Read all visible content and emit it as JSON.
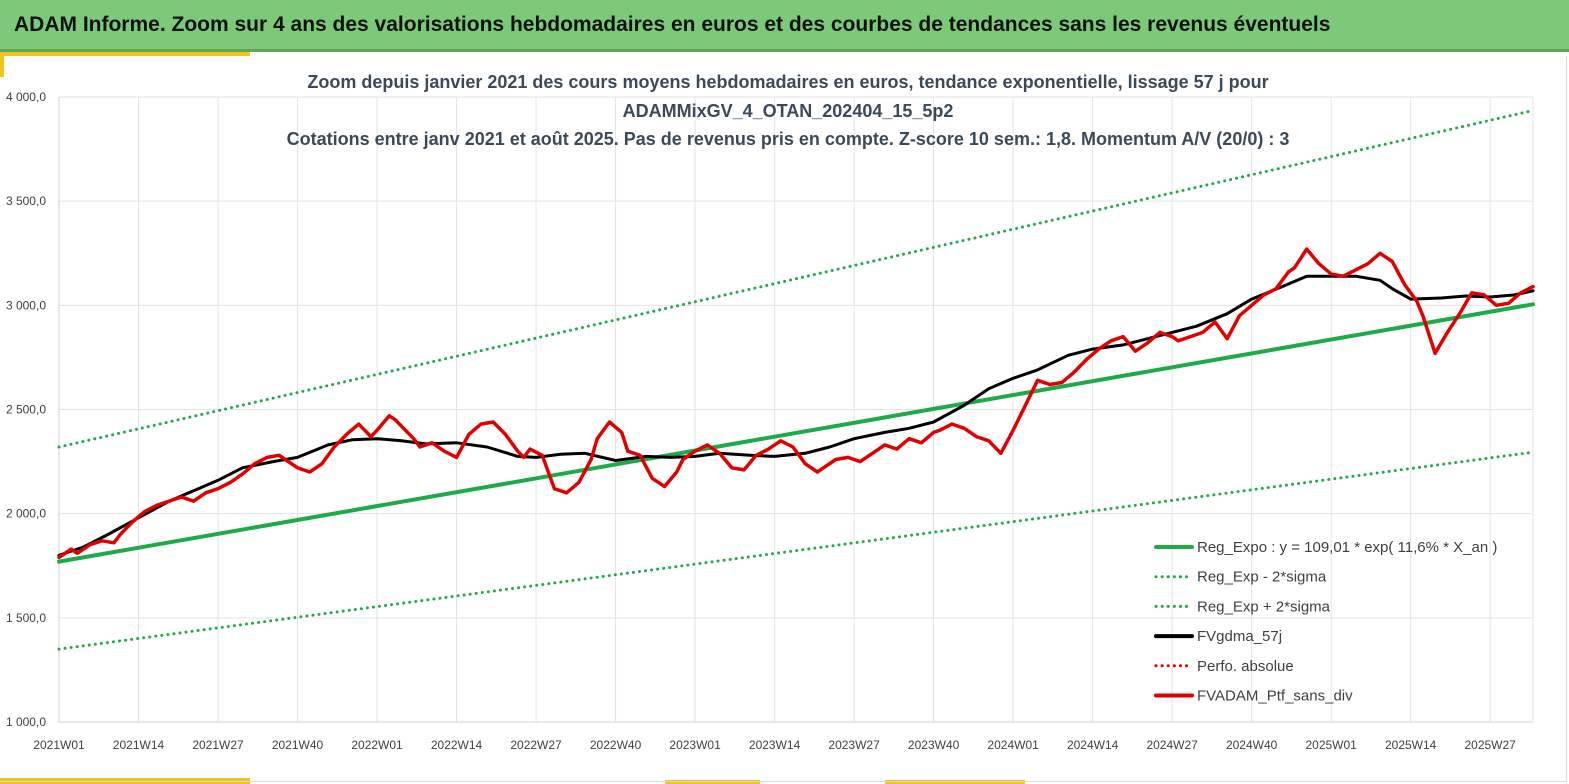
{
  "banner": {
    "title": "ADAM Informe. Zoom sur 4 ans des valorisations hebdomadaires en euros et des courbes de tendances sans les revenus éventuels"
  },
  "chart_data": {
    "type": "line",
    "title": [
      "Zoom depuis janvier 2021 des cours moyens hebdomadaires  en euros, tendance exponentielle, lissage 57 j pour",
      "ADAMMixGV_4_OTAN_202404_15_5p2",
      "Cotations  entre janv 2021 et août 2025. Pas de revenus pris en compte. Z-score 10 sem.: 1,8. Momentum A/V (20/0) : 3"
    ],
    "xlabel": "",
    "ylabel": "",
    "ylim": [
      1000,
      4000
    ],
    "xlim": [
      0,
      241
    ],
    "y_ticks": [
      1000,
      1500,
      2000,
      2500,
      3000,
      3500,
      4000
    ],
    "y_tick_labels": [
      "1 000,0",
      "1 500,0",
      "2 000,0",
      "2 500,0",
      "3 000,0",
      "3 500,0",
      "4 000,0"
    ],
    "x_ticks": [
      0,
      13,
      26,
      39,
      52,
      65,
      78,
      91,
      104,
      117,
      130,
      143,
      156,
      169,
      182,
      195,
      208,
      221,
      234
    ],
    "x_tick_labels": [
      "2021W01",
      "2021W14",
      "2021W27",
      "2021W40",
      "2022W01",
      "2022W14",
      "2022W27",
      "2022W40",
      "2023W01",
      "2023W14",
      "2023W27",
      "2023W40",
      "2024W01",
      "2024W14",
      "2024W27",
      "2024W40",
      "2025W01",
      "2025W14",
      "2025W27"
    ],
    "grid": true,
    "legend_position": "bottom-right",
    "series": [
      {
        "name": "Reg_Expo : y = 109,01 * exp( 11,6% *  X_an )",
        "color": "#1faa4a",
        "style": "solid",
        "x": [
          0,
          241
        ],
        "y": [
          1770,
          3005
        ]
      },
      {
        "name": "Reg_Exp - 2*sigma",
        "color": "#1faa4a",
        "style": "dotted",
        "x": [
          0,
          241
        ],
        "y": [
          1350,
          2295
        ]
      },
      {
        "name": "Reg_Exp + 2*sigma",
        "color": "#1faa4a",
        "style": "dotted",
        "x": [
          0,
          241
        ],
        "y": [
          2320,
          3935
        ]
      },
      {
        "name": "FVgdma_57j",
        "color": "#000000",
        "style": "solid",
        "x": [
          0,
          4,
          8,
          13,
          18,
          22,
          26,
          30,
          35,
          39,
          44,
          48,
          52,
          56,
          60,
          65,
          70,
          75,
          78,
          82,
          86,
          91,
          96,
          100,
          104,
          108,
          113,
          117,
          122,
          126,
          130,
          135,
          139,
          143,
          148,
          152,
          156,
          160,
          165,
          169,
          174,
          178,
          182,
          186,
          191,
          195,
          200,
          204,
          208,
          212,
          216,
          218,
          221,
          226,
          230,
          234,
          238,
          241
        ],
        "y": [
          1800,
          1840,
          1900,
          1980,
          2060,
          2110,
          2160,
          2220,
          2250,
          2270,
          2330,
          2355,
          2360,
          2350,
          2335,
          2340,
          2320,
          2275,
          2270,
          2285,
          2290,
          2255,
          2275,
          2270,
          2275,
          2290,
          2280,
          2275,
          2290,
          2320,
          2360,
          2390,
          2410,
          2440,
          2520,
          2600,
          2650,
          2690,
          2760,
          2790,
          2810,
          2840,
          2870,
          2900,
          2960,
          3030,
          3090,
          3140,
          3140,
          3140,
          3120,
          3080,
          3030,
          3035,
          3045,
          3040,
          3050,
          3070
        ]
      },
      {
        "name": "Perfo. absolue",
        "color": "#e00000",
        "style": "dotted",
        "x": [],
        "y": []
      },
      {
        "name": "FVADAM_Ptf_sans_div",
        "color": "#e00000",
        "style": "solid",
        "x": [
          0,
          2,
          3,
          5,
          7,
          9,
          10,
          12,
          14,
          16,
          18,
          20,
          22,
          24,
          26,
          28,
          30,
          32,
          34,
          36,
          37,
          39,
          41,
          43,
          45,
          47,
          49,
          50,
          51,
          52,
          54,
          55,
          56,
          58,
          59,
          61,
          63,
          65,
          67,
          69,
          71,
          73,
          75,
          76,
          77,
          79,
          81,
          83,
          85,
          87,
          88,
          90,
          92,
          93,
          95,
          97,
          99,
          101,
          102,
          104,
          106,
          108,
          110,
          112,
          114,
          116,
          118,
          120,
          122,
          124,
          125,
          127,
          129,
          131,
          133,
          135,
          137,
          139,
          141,
          143,
          144,
          146,
          148,
          150,
          152,
          154,
          156,
          158,
          160,
          162,
          164,
          166,
          168,
          170,
          172,
          174,
          176,
          178,
          180,
          182,
          183,
          185,
          187,
          189,
          191,
          193,
          195,
          197,
          199,
          201,
          202,
          204,
          206,
          208,
          210,
          212,
          214,
          216,
          218,
          220,
          222,
          223,
          225,
          227,
          229,
          231,
          233,
          235,
          237,
          239,
          241
        ],
        "y": [
          1790,
          1830,
          1810,
          1850,
          1870,
          1860,
          1900,
          1960,
          2010,
          2040,
          2060,
          2080,
          2060,
          2100,
          2120,
          2150,
          2190,
          2240,
          2270,
          2280,
          2260,
          2220,
          2200,
          2240,
          2320,
          2380,
          2430,
          2400,
          2370,
          2400,
          2470,
          2450,
          2420,
          2360,
          2320,
          2340,
          2300,
          2270,
          2380,
          2430,
          2440,
          2380,
          2300,
          2270,
          2310,
          2280,
          2120,
          2100,
          2150,
          2260,
          2360,
          2440,
          2390,
          2300,
          2280,
          2170,
          2130,
          2200,
          2260,
          2300,
          2330,
          2290,
          2220,
          2210,
          2280,
          2310,
          2350,
          2320,
          2240,
          2200,
          2220,
          2260,
          2270,
          2250,
          2290,
          2330,
          2310,
          2360,
          2340,
          2390,
          2400,
          2430,
          2410,
          2370,
          2350,
          2290,
          2400,
          2520,
          2640,
          2620,
          2630,
          2680,
          2740,
          2790,
          2830,
          2850,
          2780,
          2820,
          2870,
          2850,
          2830,
          2850,
          2870,
          2920,
          2840,
          2950,
          3000,
          3050,
          3080,
          3160,
          3180,
          3270,
          3200,
          3150,
          3140,
          3170,
          3200,
          3250,
          3210,
          3100,
          3020,
          2950,
          2770,
          2870,
          2960,
          3060,
          3050,
          3000,
          3010,
          3060,
          3090
        ]
      }
    ]
  }
}
